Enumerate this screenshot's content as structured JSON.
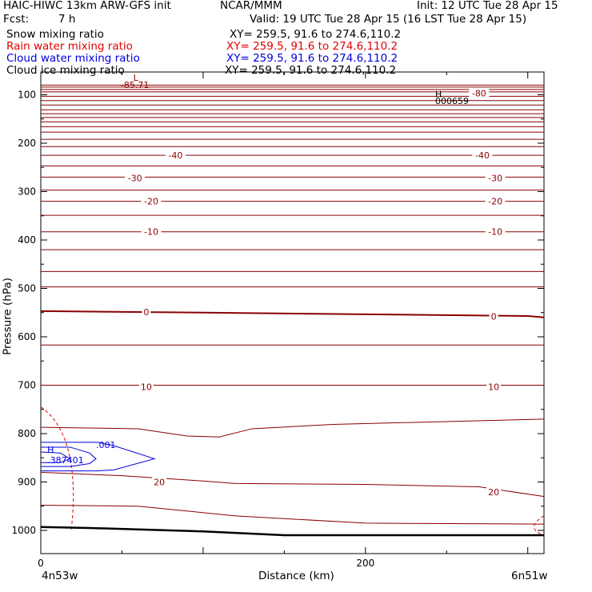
{
  "header": {
    "title": "HAIC-HIWC 13km ARW-GFS init",
    "org": "NCAR/MMM",
    "init": "Init: 12 UTC Tue 28 Apr 15",
    "fcst_label": "Fcst:",
    "fcst_value": "7 h",
    "valid": "Valid: 19 UTC Tue 28 Apr 15 (16 LST Tue 28 Apr 15)"
  },
  "fields": [
    {
      "name": "Snow mixing ratio",
      "color": "#000000",
      "xy": "XY= 259.5, 91.6 to 274.6,110.2"
    },
    {
      "name": "Rain water mixing ratio",
      "color": "#e00000",
      "xy": "XY= 259.5, 91.6 to 274.6,110.2"
    },
    {
      "name": "Cloud water mixing ratio",
      "color": "#0000e0",
      "xy": "XY= 259.5, 91.6 to 274.6,110.2"
    },
    {
      "name": "Cloud ice mixing ratio",
      "color": "#000000",
      "xy": "XY= 259.5, 91.6 to 274.6,110.2"
    }
  ],
  "chart_data": {
    "type": "cross-section",
    "xlabel": "Distance (km)",
    "ylabel": "Pressure (hPa)",
    "xlim": [
      0,
      310
    ],
    "ylim": [
      1035,
      70
    ],
    "x_ticks": [
      0,
      200
    ],
    "x_minor_step": 50,
    "y_ticks": [
      100,
      200,
      300,
      400,
      500,
      600,
      700,
      800,
      900,
      1000
    ],
    "y_minor_step": 50,
    "endpoints": {
      "left": "4n53w",
      "right": "6n51w"
    },
    "temperature_contours": [
      {
        "label": "-80",
        "p": [
          89,
          89
        ],
        "label_at": [
          {
            "x": 270,
            "p": 97
          }
        ]
      },
      {
        "label": "-40",
        "p": [
          225,
          225
        ],
        "label_at": [
          {
            "x": 83,
            "p": 225
          },
          {
            "x": 272,
            "p": 225
          }
        ]
      },
      {
        "label": "-30",
        "p": [
          270,
          270
        ],
        "label_at": [
          {
            "x": 58,
            "p": 272
          },
          {
            "x": 280,
            "p": 272
          }
        ]
      },
      {
        "label": "-20",
        "p": [
          320,
          320
        ],
        "label_at": [
          {
            "x": 68,
            "p": 320
          },
          {
            "x": 280,
            "p": 320
          }
        ]
      },
      {
        "label": "-10",
        "p": [
          383,
          383
        ],
        "label_at": [
          {
            "x": 68,
            "p": 383
          },
          {
            "x": 280,
            "p": 383
          }
        ]
      },
      {
        "label": "0",
        "x": [
          0,
          100,
          300,
          310
        ],
        "p": [
          547,
          550,
          557,
          560
        ],
        "bold": true,
        "label_at": [
          {
            "x": 65,
            "p": 549
          },
          {
            "x": 279,
            "p": 558
          }
        ]
      },
      {
        "label": "10",
        "x": [
          0,
          310
        ],
        "p": [
          700,
          700
        ],
        "label_at": [
          {
            "x": 65,
            "p": 703
          },
          {
            "x": 279,
            "p": 703
          }
        ]
      },
      {
        "label": "20",
        "x": [
          0,
          50,
          100,
          120,
          200,
          270,
          310
        ],
        "p": [
          880,
          887,
          898,
          903,
          905,
          910,
          930
        ],
        "label_at": [
          {
            "x": 73,
            "p": 900
          },
          {
            "x": 279,
            "p": 921
          }
        ]
      }
    ],
    "cloud_water": {
      "label": ".001",
      "max_label": ".387401",
      "color": "#0000e0"
    },
    "highs": [
      {
        "label": "H",
        "value": "000659"
      }
    ],
    "lows": [
      {
        "label": "L",
        "value": "-85.71"
      }
    ],
    "surface_pressure": {
      "x": [
        0,
        30,
        100,
        150,
        200,
        310
      ],
      "p": [
        993,
        995,
        1002,
        1010,
        1010,
        1010
      ]
    }
  }
}
